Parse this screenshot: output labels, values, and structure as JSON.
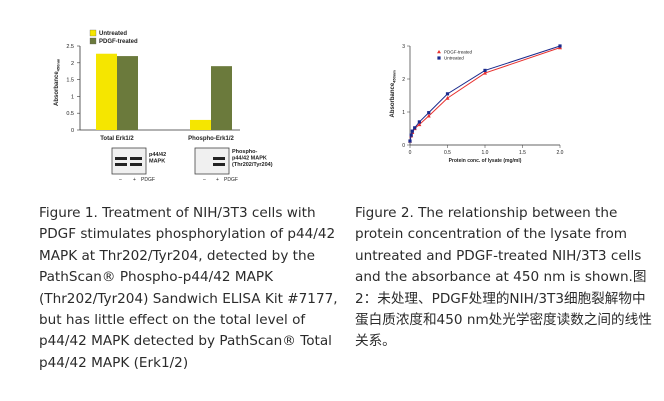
{
  "figure1": {
    "chart_data": {
      "type": "bar",
      "ylabel": "Absorbance",
      "ylabel_sub": "450nm",
      "ylim": [
        0,
        2.5
      ],
      "yticks": [
        "0",
        "0.5",
        "1",
        "1.5",
        "2",
        "2.5"
      ],
      "categories": [
        "Total Erk1/2",
        "Phospho-Erk1/2"
      ],
      "series": [
        {
          "name": "Untreated",
          "color": "#f5e600",
          "values": [
            2.27,
            0.3
          ]
        },
        {
          "name": "PDGF-treated",
          "color": "#6b7a3c",
          "values": [
            2.2,
            1.9
          ]
        }
      ],
      "legend": "top-left"
    },
    "blots": {
      "left_label": "p44/42\nMAPK",
      "right_label": "Phospho-\np44/42 MAPK\n(Thr202/Tyr204)",
      "lane_minus": "–",
      "lane_plus": "+",
      "lane_caption": "PDGF"
    },
    "caption": "Figure 1. Treatment of NIH/3T3 cells with PDGF stimulates phosphorylation of p44/42 MAPK at Thr202/Tyr204, detected by the PathScan® Phospho-p44/42 MAPK (Thr202/Tyr204) Sandwich ELISA Kit #7177, but has little effect on the total level of p44/42 MAPK detected by PathScan® Total p44/42 MAPK (Erk1/2)"
  },
  "figure2": {
    "chart_data": {
      "type": "line",
      "xlabel": "Protein conc. of lysate (mg/ml)",
      "ylabel": "Absorbance",
      "ylabel_sub": "450nm",
      "xlim": [
        0,
        2.0
      ],
      "ylim": [
        0,
        3
      ],
      "xticks": [
        "0",
        "0.5",
        "1.0",
        "1.5",
        "2.0"
      ],
      "yticks": [
        "0",
        "1",
        "2",
        "3"
      ],
      "series": [
        {
          "name": "PDGF-treated",
          "color": "#e8302e",
          "marker": "triangle",
          "x": [
            0,
            0.016,
            0.031,
            0.0625,
            0.125,
            0.25,
            0.5,
            1.0,
            2.0
          ],
          "y": [
            0.12,
            0.28,
            0.38,
            0.5,
            0.62,
            0.88,
            1.42,
            2.18,
            2.95
          ]
        },
        {
          "name": "Untreated",
          "color": "#1a2a8c",
          "marker": "square",
          "x": [
            0,
            0.016,
            0.031,
            0.0625,
            0.125,
            0.25,
            0.5,
            1.0,
            2.0
          ],
          "y": [
            0.12,
            0.3,
            0.42,
            0.52,
            0.7,
            0.98,
            1.55,
            2.26,
            3.0
          ]
        }
      ],
      "legend": "top-left"
    },
    "caption": "Figure 2. The relationship between the protein concentration of the lysate from untreated and PDGF-treated NIH/3T3 cells and the absorbance at 450 nm is shown.图2：未处理、PDGF处理的NIH/3T3细胞裂解物中蛋白质浓度和450 nm处光学密度读数之间的线性关系。"
  }
}
